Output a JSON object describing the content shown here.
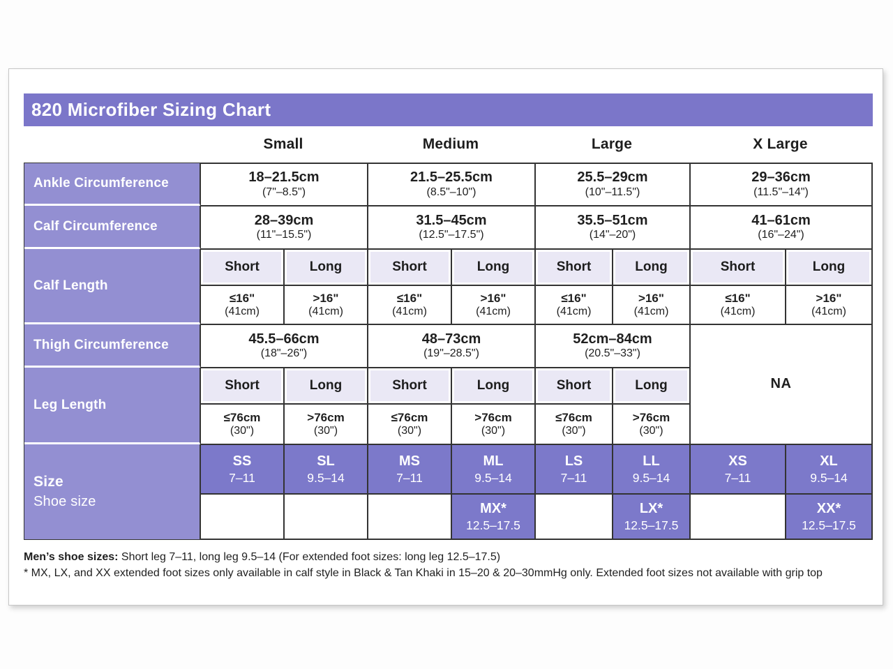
{
  "title": "820 Microfiber Sizing Chart",
  "size_headers": [
    "Small",
    "Medium",
    "Large",
    "X Large"
  ],
  "labels": {
    "ankle": "Ankle Circumference",
    "calf_circ": "Calf Circumference",
    "calf_len": "Calf Length",
    "thigh": "Thigh Circumference",
    "leg_len": "Leg Length",
    "size_line1": "Size",
    "size_line2": "Shoe size"
  },
  "ankle": [
    {
      "cm": "18–21.5cm",
      "in": "(7\"–8.5\")"
    },
    {
      "cm": "21.5–25.5cm",
      "in": "(8.5\"–10\")"
    },
    {
      "cm": "25.5–29cm",
      "in": "(10\"–11.5\")"
    },
    {
      "cm": "29–36cm",
      "in": "(11.5\"–14\")"
    }
  ],
  "calf_circ": [
    {
      "cm": "28–39cm",
      "in": "(11\"–15.5\")"
    },
    {
      "cm": "31.5–45cm",
      "in": "(12.5\"–17.5\")"
    },
    {
      "cm": "35.5–51cm",
      "in": "(14\"–20\")"
    },
    {
      "cm": "41–61cm",
      "in": "(16\"–24\")"
    }
  ],
  "calf_len": {
    "subheaders": [
      "Short",
      "Long",
      "Short",
      "Long",
      "Short",
      "Long",
      "Short",
      "Long"
    ],
    "values": [
      {
        "v": "≤16\"",
        "s": "(41cm)"
      },
      {
        "v": ">16\"",
        "s": "(41cm)"
      },
      {
        "v": "≤16\"",
        "s": "(41cm)"
      },
      {
        "v": ">16\"",
        "s": "(41cm)"
      },
      {
        "v": "≤16\"",
        "s": "(41cm)"
      },
      {
        "v": ">16\"",
        "s": "(41cm)"
      },
      {
        "v": "≤16\"",
        "s": "(41cm)"
      },
      {
        "v": ">16\"",
        "s": "(41cm)"
      }
    ]
  },
  "thigh": [
    {
      "cm": "45.5–66cm",
      "in": "(18\"–26\")"
    },
    {
      "cm": "48–73cm",
      "in": "(19\"–28.5\")"
    },
    {
      "cm": "52cm–84cm",
      "in": "(20.5\"–33\")"
    }
  ],
  "na": "NA",
  "leg_len": {
    "subheaders": [
      "Short",
      "Long",
      "Short",
      "Long",
      "Short",
      "Long"
    ],
    "values": [
      {
        "v": "≤76cm",
        "s": "(30\")"
      },
      {
        "v": ">76cm",
        "s": "(30\")"
      },
      {
        "v": "≤76cm",
        "s": "(30\")"
      },
      {
        "v": ">76cm",
        "s": "(30\")"
      },
      {
        "v": "≤76cm",
        "s": "(30\")"
      },
      {
        "v": ">76cm",
        "s": "(30\")"
      }
    ]
  },
  "sizes": [
    {
      "code": "SS",
      "shoe": "7–11"
    },
    {
      "code": "SL",
      "shoe": "9.5–14"
    },
    {
      "code": "MS",
      "shoe": "7–11"
    },
    {
      "code": "ML",
      "shoe": "9.5–14"
    },
    {
      "code": "LS",
      "shoe": "7–11"
    },
    {
      "code": "LL",
      "shoe": "9.5–14"
    },
    {
      "code": "XS",
      "shoe": "7–11"
    },
    {
      "code": "XL",
      "shoe": "9.5–14"
    }
  ],
  "extended_sizes": [
    {
      "code": "MX*",
      "shoe": "12.5–17.5"
    },
    {
      "code": "LX*",
      "shoe": "12.5–17.5"
    },
    {
      "code": "XX*",
      "shoe": "12.5–17.5"
    }
  ],
  "footnotes": {
    "line1_bold": "Men’s shoe sizes:",
    "line1_rest": " Short leg 7–11, long leg 9.5–14 (For extended foot sizes: long leg 12.5–17.5)",
    "line2": "* MX, LX, and XX extended foot sizes only available in calf style in Black & Tan Khaki in 15–20 & 20–30mmHg only. Extended foot sizes not available with grip top"
  },
  "colors": {
    "title_bar_purple": "#7b76c9",
    "row_label_purple": "#938fd2",
    "size_cell_purple": "#7c79ca",
    "subheader_lavender": "#eae8f5",
    "table_border": "#333333"
  }
}
